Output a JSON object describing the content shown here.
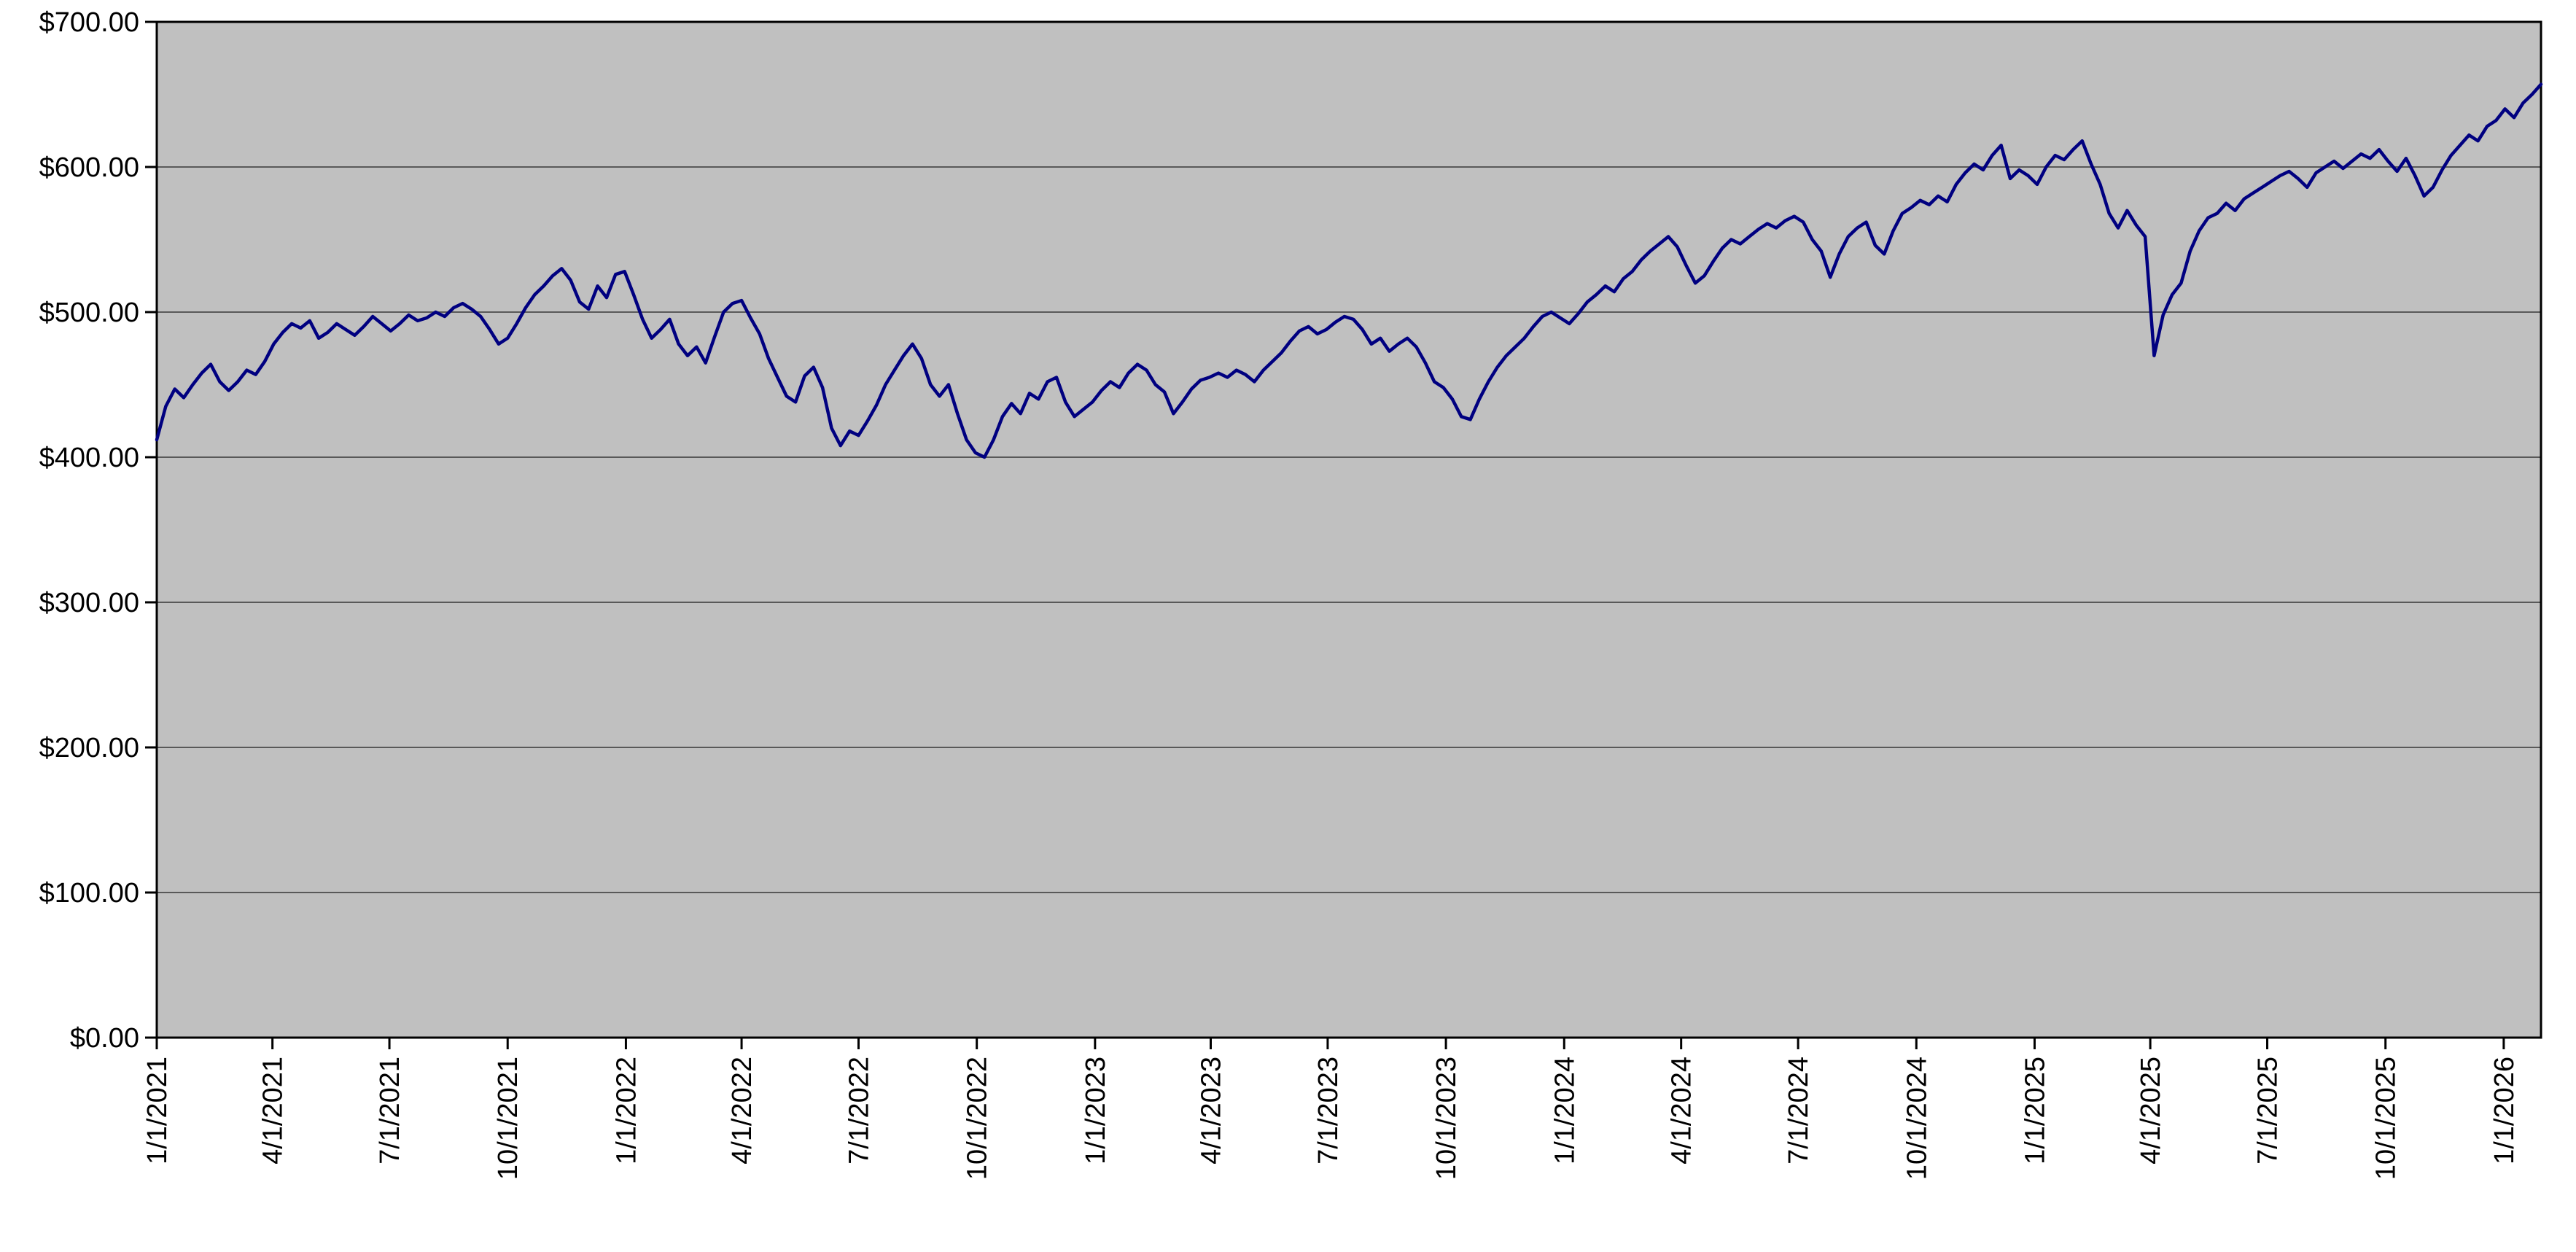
{
  "chart_data": {
    "type": "line",
    "title": "",
    "xlabel": "",
    "ylabel": "",
    "ylim": [
      0,
      700
    ],
    "grid": true,
    "legend": "none",
    "plot_background": "#c0c0c0",
    "gridline_color": "#595959",
    "axis_color": "#000000",
    "label_color": "#000000",
    "line_color": "#000080",
    "y_ticks": [
      {
        "label": "$0.00",
        "value": 0
      },
      {
        "label": "$100.00",
        "value": 100
      },
      {
        "label": "$200.00",
        "value": 200
      },
      {
        "label": "$300.00",
        "value": 300
      },
      {
        "label": "$400.00",
        "value": 400
      },
      {
        "label": "$500.00",
        "value": 500
      },
      {
        "label": "$600.00",
        "value": 600
      },
      {
        "label": "$700.00",
        "value": 700
      }
    ],
    "x_tick_labels": [
      "1/1/2021",
      "4/1/2021",
      "7/1/2021",
      "10/1/2021",
      "1/1/2022",
      "4/1/2022",
      "7/1/2022",
      "10/1/2022",
      "1/1/2023",
      "4/1/2023",
      "7/1/2023",
      "10/1/2023",
      "1/1/2024",
      "4/1/2024",
      "7/1/2024",
      "10/1/2024",
      "1/1/2025",
      "4/1/2025",
      "7/1/2025",
      "10/1/2025",
      "1/1/2026"
    ],
    "x_start_date": "1/1/2021",
    "point_interval_days": 7,
    "values": [
      412,
      435,
      447,
      441,
      450,
      458,
      464,
      452,
      446,
      452,
      460,
      457,
      466,
      478,
      486,
      492,
      489,
      494,
      482,
      486,
      492,
      488,
      484,
      490,
      497,
      492,
      487,
      492,
      498,
      494,
      496,
      500,
      497,
      503,
      506,
      502,
      497,
      488,
      478,
      482,
      492,
      503,
      512,
      518,
      525,
      530,
      522,
      507,
      502,
      518,
      510,
      526,
      528,
      512,
      495,
      482,
      488,
      495,
      478,
      470,
      476,
      465,
      483,
      500,
      506,
      508,
      496,
      485,
      468,
      455,
      442,
      438,
      456,
      462,
      448,
      420,
      408,
      418,
      415,
      425,
      436,
      450,
      460,
      470,
      478,
      468,
      450,
      442,
      450,
      430,
      412,
      403,
      400,
      412,
      428,
      437,
      430,
      444,
      440,
      452,
      455,
      438,
      428,
      433,
      438,
      446,
      452,
      448,
      458,
      464,
      460,
      450,
      445,
      430,
      438,
      447,
      453,
      455,
      458,
      455,
      460,
      457,
      452,
      460,
      466,
      472,
      480,
      487,
      490,
      485,
      488,
      493,
      497,
      495,
      488,
      478,
      482,
      473,
      478,
      482,
      476,
      465,
      452,
      448,
      440,
      428,
      426,
      440,
      452,
      462,
      470,
      476,
      482,
      490,
      497,
      500,
      496,
      492,
      499,
      507,
      512,
      518,
      514,
      523,
      528,
      536,
      542,
      547,
      552,
      545,
      532,
      520,
      525,
      535,
      544,
      550,
      547,
      552,
      557,
      561,
      558,
      563,
      566,
      562,
      550,
      542,
      524,
      540,
      552,
      558,
      562,
      546,
      540,
      556,
      568,
      572,
      577,
      574,
      580,
      576,
      588,
      596,
      602,
      598,
      608,
      615,
      592,
      598,
      594,
      588,
      600,
      608,
      605,
      612,
      618,
      602,
      588,
      568,
      558,
      570,
      560,
      552,
      470,
      498,
      512,
      520,
      542,
      556,
      565,
      568,
      575,
      570,
      578,
      582,
      586,
      590,
      594,
      597,
      592,
      586,
      596,
      600,
      604,
      599,
      604,
      609,
      606,
      612,
      604,
      597,
      606,
      594,
      580,
      586,
      598,
      608,
      615,
      622,
      618,
      628,
      632,
      640,
      634,
      644,
      650,
      657
    ]
  }
}
